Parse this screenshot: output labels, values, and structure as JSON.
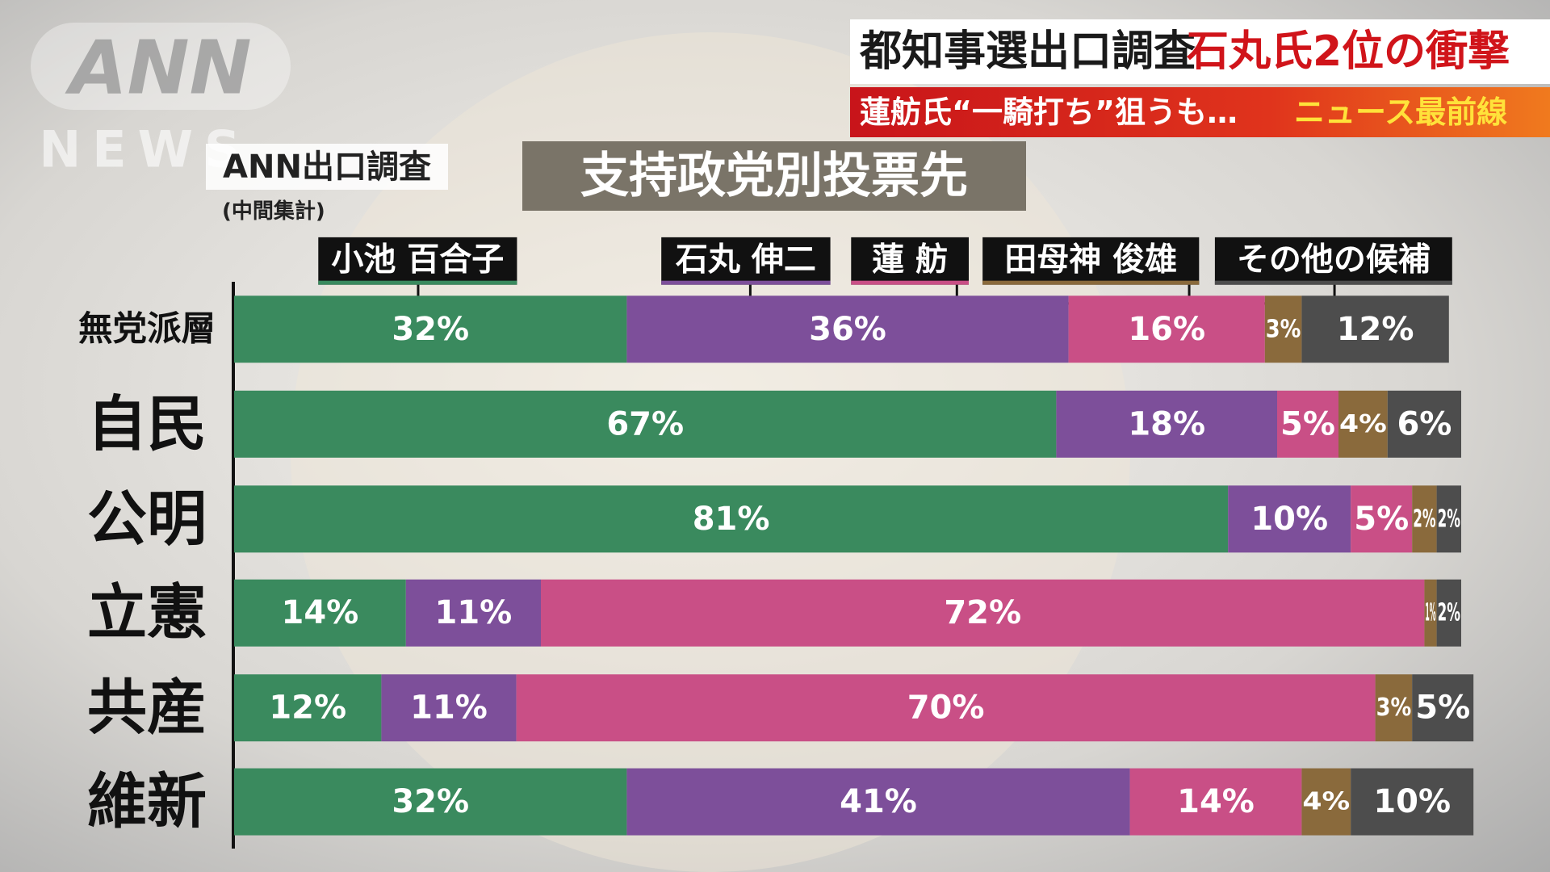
{
  "logo": {
    "top": "ANN",
    "bottom": "NEWS"
  },
  "banner": {
    "headline": "都知事選出口調査",
    "headline_highlight": "石丸氏2位の衝撃",
    "subheadline": "蓮舫氏“一騎打ち”狙うも…",
    "program": "ニュース最前線"
  },
  "chart_data": {
    "type": "bar",
    "orientation": "horizontal",
    "stacked": true,
    "title": "支持政党別投票先",
    "source": "ANN出口調査",
    "note": "(中間集計)",
    "categories": [
      "無党派層",
      "自民",
      "公明",
      "立憲",
      "共産",
      "維新"
    ],
    "series": [
      {
        "name": "小池 百合子",
        "color": "#3a8a5e",
        "values": [
          32,
          67,
          81,
          14,
          12,
          32
        ],
        "value_labels": [
          "32%",
          "67%",
          "81%",
          "14%",
          "12%",
          "32%"
        ]
      },
      {
        "name": "石丸 伸二",
        "color": "#7d4f9a",
        "values": [
          36,
          18,
          10,
          11,
          11,
          41
        ],
        "value_labels": [
          "36%",
          "18%",
          "10%",
          "11%",
          "11%",
          "41%"
        ]
      },
      {
        "name": "蓮 舫",
        "color": "#c94f86",
        "values": [
          16,
          5,
          5,
          72,
          70,
          14
        ],
        "value_labels": [
          "16%",
          "5%",
          "5%",
          "72%",
          "70%",
          "14%"
        ]
      },
      {
        "name": "田母神 俊雄",
        "color": "#8a6a3c",
        "values": [
          3,
          4,
          2,
          1,
          3,
          4
        ],
        "value_labels": [
          "3%",
          "4%",
          "2%",
          "1%",
          "3%",
          "4%"
        ]
      },
      {
        "name": "その他の候補",
        "color": "#4d4d4d",
        "values": [
          12,
          6,
          2,
          2,
          5,
          10
        ],
        "value_labels": [
          "12%",
          "6%",
          "2%",
          "2%",
          "5%",
          "10%"
        ]
      }
    ]
  }
}
